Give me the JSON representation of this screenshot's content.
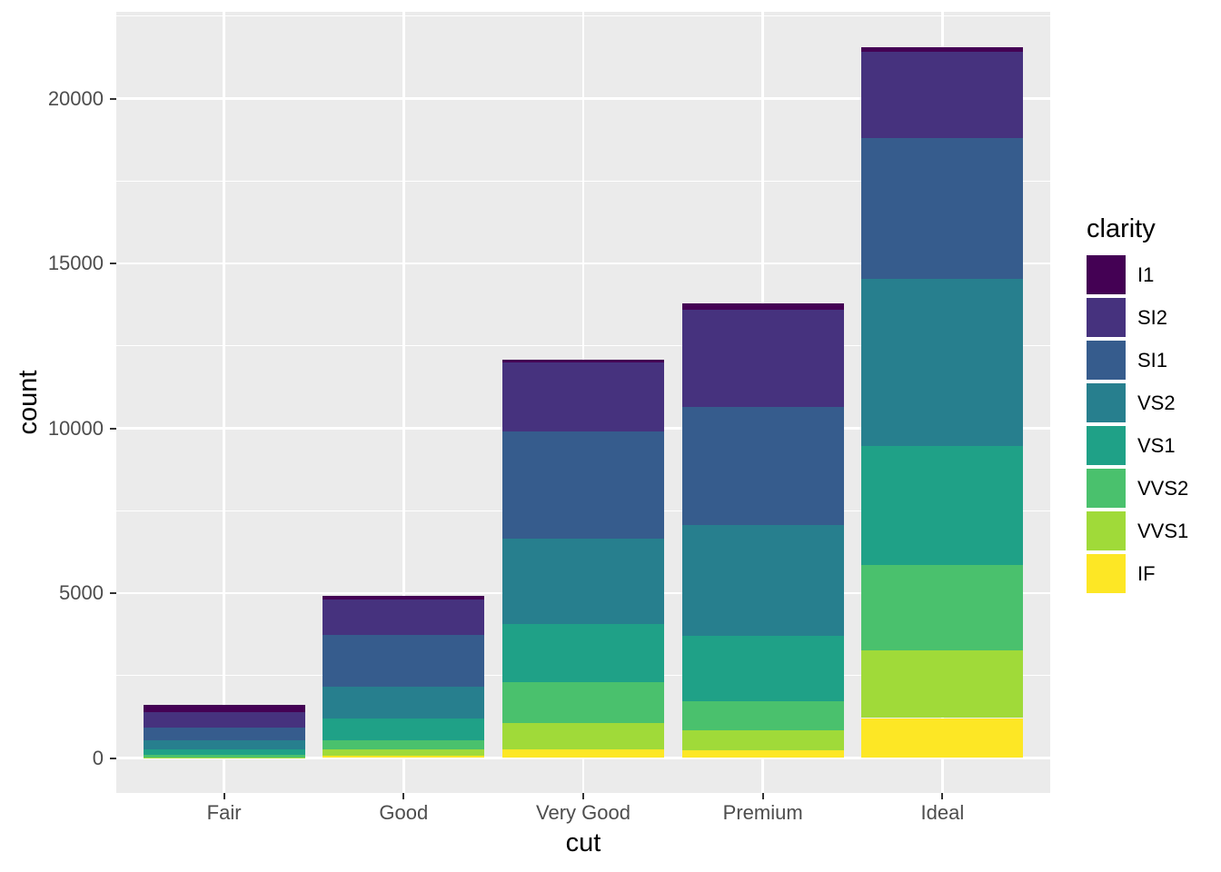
{
  "chart_data": {
    "type": "bar",
    "stacked": true,
    "stack_order": "first_series_on_top",
    "title": "",
    "xlabel": "cut",
    "ylabel": "count",
    "legend_title": "clarity",
    "legend_position": "right",
    "grid": true,
    "categories": [
      "Fair",
      "Good",
      "Very Good",
      "Premium",
      "Ideal"
    ],
    "series": [
      {
        "name": "I1",
        "color": "#440154",
        "values": [
          210,
          96,
          84,
          205,
          146
        ]
      },
      {
        "name": "SI2",
        "color": "#46327E",
        "values": [
          466,
          1081,
          2100,
          2949,
          2598
        ]
      },
      {
        "name": "SI1",
        "color": "#365C8D",
        "values": [
          408,
          1560,
          3240,
          3575,
          4282
        ]
      },
      {
        "name": "VS2",
        "color": "#277F8E",
        "values": [
          261,
          978,
          2591,
          3357,
          5071
        ]
      },
      {
        "name": "VS1",
        "color": "#1FA187",
        "values": [
          170,
          648,
          1775,
          1989,
          3589
        ]
      },
      {
        "name": "VVS2",
        "color": "#4AC16D",
        "values": [
          69,
          286,
          1235,
          870,
          2606
        ]
      },
      {
        "name": "VVS1",
        "color": "#A0DA39",
        "values": [
          17,
          186,
          789,
          616,
          2047
        ]
      },
      {
        "name": "IF",
        "color": "#FDE725",
        "values": [
          9,
          71,
          268,
          230,
          1212
        ]
      }
    ],
    "y_ticks": [
      0,
      5000,
      10000,
      15000,
      20000
    ],
    "y_minor_ticks": [
      2500,
      7500,
      12500,
      17500,
      22500
    ],
    "ylim": [
      -1078,
      22629
    ],
    "colors": {
      "panel_bg": "#EBEBEB",
      "grid": "#FFFFFF",
      "tick_text": "#4D4D4D",
      "axis_title_text": "#000000",
      "tick_mark": "#333333"
    }
  }
}
